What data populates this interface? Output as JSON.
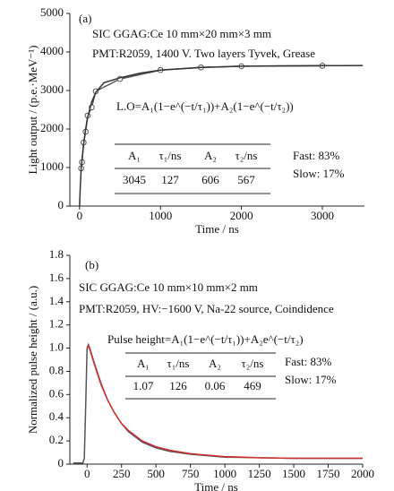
{
  "chart_data": [
    {
      "type": "scatter",
      "panel_label": "(a)",
      "annotations": [
        "SIC GGAG:Ce 10 mm×20 mm×3 mm",
        "PMT:R2059, 1400 V. Two layers Tyvek, Grease",
        "L.O=A₁(1−e^(−t/τ₁))+A₂(1−e^(−t/τ₂))",
        "Fast: 83%",
        "Slow: 17%"
      ],
      "table": {
        "header": [
          "A₁",
          "τ₁/ns",
          "A₂",
          "τ₂/ns"
        ],
        "rows": [
          [
            3045,
            127,
            606,
            567
          ]
        ]
      },
      "x_label": "Time / ns",
      "y_label": "Light output / (p.e.·MeV⁻¹)",
      "xlim": [
        -120,
        3520
      ],
      "xticks": [
        0,
        1000,
        2000,
        3000
      ],
      "ylim": [
        0,
        5000
      ],
      "yticks": [
        0,
        1000,
        2000,
        3000,
        4000,
        5000
      ],
      "series": [
        {
          "color": "#555555",
          "marker": "circle",
          "x": [
            20,
            30,
            50,
            75,
            100,
            150,
            200,
            500,
            1000,
            1500,
            2000,
            3000
          ],
          "values": [
            980,
            1140,
            1650,
            1930,
            2350,
            2560,
            2980,
            3300,
            3530,
            3600,
            3630,
            3640
          ]
        },
        {
          "color": "#333333",
          "x": [
            0,
            10,
            20,
            30,
            50,
            75,
            100,
            150,
            200,
            300,
            500,
            750,
            1000,
            1500,
            2000,
            2500,
            3000,
            3500
          ],
          "values": [
            0,
            550,
            980,
            1200,
            1600,
            2000,
            2300,
            2700,
            2950,
            3200,
            3330,
            3450,
            3530,
            3600,
            3630,
            3640,
            3645,
            3648
          ]
        }
      ]
    },
    {
      "type": "line",
      "panel_label": "(b)",
      "annotations": [
        "SIC GGAG:Ce 10 mm×10 mm×2 mm",
        "PMT:R2059, HV:−1600 V, Na-22 source, Coindidence",
        "Pulse height=A₁(1−e^(−t/τ₁))+A₂e^(−t/τ₂)",
        "Fast: 83%",
        "Slow: 17%"
      ],
      "table": {
        "header": [
          "A₁",
          "τ₁/ns",
          "A₂",
          "τ₂/ns"
        ],
        "rows": [
          [
            1.07,
            126,
            0.06,
            469
          ]
        ]
      },
      "x_label": "Time / ns",
      "y_label": "Normalized pulse height / (a.u.)",
      "xlim": [
        -125,
        2000
      ],
      "xticks": [
        0,
        250,
        500,
        750,
        1000,
        1250,
        1500,
        1750,
        2000
      ],
      "ylim": [
        0,
        1.8
      ],
      "yticks": [
        0,
        0.2,
        0.4,
        0.6,
        0.8,
        {
          "value": 1,
          "label": "1.0"
        },
        1.2,
        1.4,
        1.6,
        1.8
      ],
      "series": [
        {
          "color": "#555555",
          "x": [
            -100,
            -30,
            -20,
            -10,
            0,
            10,
            25,
            50,
            100,
            150,
            200,
            250,
            300,
            400,
            500,
            600,
            750,
            1000,
            1250,
            1500,
            1750,
            2000
          ],
          "values": [
            0.01,
            0.01,
            0.05,
            0.5,
            1.0,
            1.03,
            0.98,
            0.88,
            0.7,
            0.55,
            0.44,
            0.35,
            0.28,
            0.19,
            0.14,
            0.11,
            0.085,
            0.06,
            0.055,
            0.05,
            0.05,
            0.05
          ]
        },
        {
          "color": "#d03030",
          "x": [
            0,
            10,
            25,
            50,
            100,
            150,
            200,
            250,
            300,
            400,
            500,
            600,
            750,
            1000,
            1250,
            1500,
            1750,
            2000
          ],
          "values": [
            1.0,
            1.02,
            0.97,
            0.87,
            0.69,
            0.55,
            0.44,
            0.35,
            0.29,
            0.2,
            0.15,
            0.12,
            0.09,
            0.065,
            0.055,
            0.05,
            0.05,
            0.05
          ]
        }
      ]
    }
  ]
}
